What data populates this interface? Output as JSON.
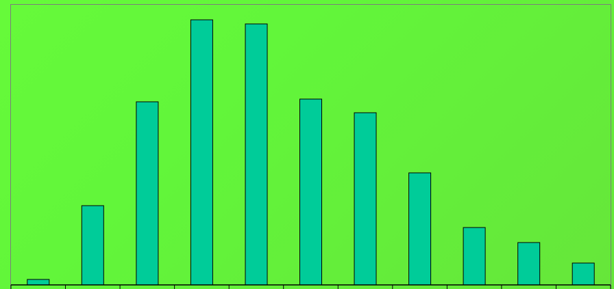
{
  "colors": {
    "background": "#66f33a",
    "bar_fill": "#00cc99",
    "bar_stroke": "#000000",
    "axis": "#000000",
    "frame": "#7c7c7c"
  },
  "chart_data": {
    "type": "bar",
    "title": "",
    "xlabel": "",
    "ylabel": "",
    "categories": [
      "",
      "",
      "",
      "",
      "",
      "",
      "",
      "",
      "",
      "",
      ""
    ],
    "values": [
      2,
      29,
      67,
      97,
      95.5,
      68,
      63,
      41,
      21,
      15.5,
      8
    ],
    "ylim": [
      0,
      100
    ],
    "grid": false,
    "legend": "none",
    "tick_labels_visible": false
  }
}
